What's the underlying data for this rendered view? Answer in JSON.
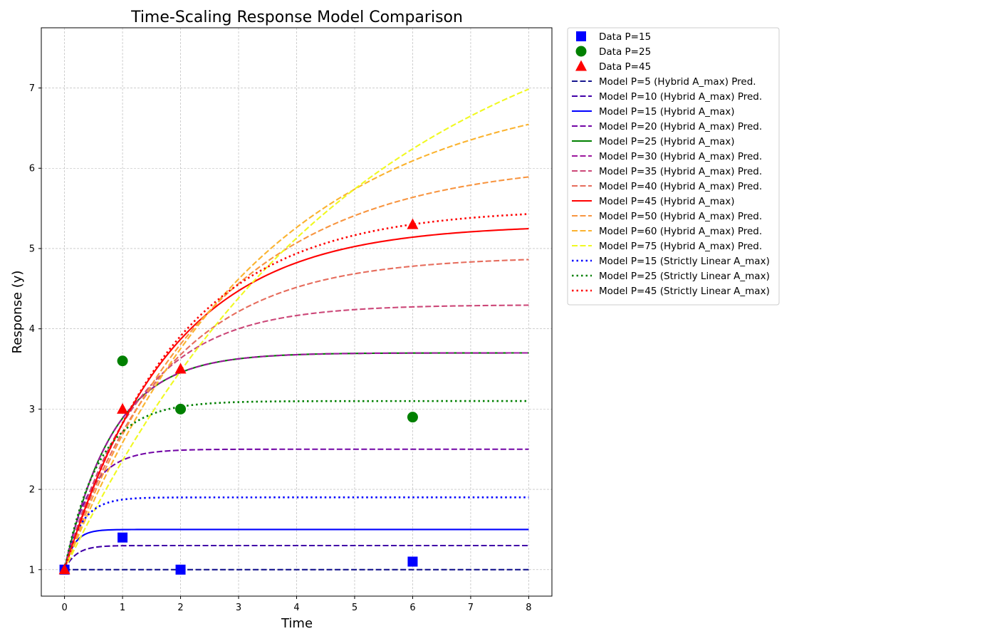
{
  "chart_data": {
    "type": "line",
    "title": "Time-Scaling Response Model Comparison",
    "xlabel": "Time",
    "ylabel": "Response (y)",
    "xlim": [
      -0.4,
      8.4
    ],
    "ylim": [
      0.67,
      7.75
    ],
    "xticks": [
      0,
      1,
      2,
      3,
      4,
      5,
      6,
      7,
      8
    ],
    "yticks": [
      1,
      2,
      3,
      4,
      5,
      6,
      7
    ],
    "grid": true,
    "legend_position": "outside-right-top",
    "scatter_series": [
      {
        "name": "Data P=15",
        "marker": "square",
        "color": "#0000ff",
        "points": [
          [
            0,
            1.0
          ],
          [
            1,
            1.4
          ],
          [
            2,
            1.0
          ],
          [
            6,
            1.1
          ]
        ]
      },
      {
        "name": "Data P=25",
        "marker": "circle",
        "color": "#008000",
        "points": [
          [
            1,
            3.6
          ],
          [
            2,
            3.0
          ],
          [
            6,
            2.9
          ]
        ]
      },
      {
        "name": "Data P=45",
        "marker": "triangle",
        "color": "#ff0000",
        "points": [
          [
            0,
            1.0
          ],
          [
            1,
            3.0
          ],
          [
            2,
            3.5
          ],
          [
            6,
            5.3
          ]
        ]
      }
    ],
    "line_series": [
      {
        "name": "Model P=5 (Hybrid A_max) Pred.",
        "style": "dashed",
        "color": "#17178f",
        "asymptote": 1.0,
        "rate": 3.0
      },
      {
        "name": "Model P=10 (Hybrid A_max) Pred.",
        "style": "dashed",
        "color": "#4100a8",
        "asymptote": 1.3,
        "rate": 5.0
      },
      {
        "name": "Model P=15 (Hybrid A_max)",
        "style": "solid",
        "color": "#0000ff",
        "asymptote": 1.5,
        "rate": 6.0
      },
      {
        "name": "Model P=20 (Hybrid A_max) Pred.",
        "style": "dashed",
        "color": "#7205a6",
        "asymptote": 2.5,
        "rate": 2.4
      },
      {
        "name": "Model P=25 (Hybrid A_max)",
        "style": "solid",
        "color": "#008000",
        "asymptote": 3.7,
        "rate": 1.2
      },
      {
        "name": "Model P=30 (Hybrid A_max) Pred.",
        "style": "dashed",
        "color": "#9c179e",
        "asymptote": 3.7,
        "rate": 1.2
      },
      {
        "name": "Model P=35 (Hybrid A_max) Pred.",
        "style": "dashed",
        "color": "#cc4778",
        "asymptote": 4.3,
        "rate": 0.8
      },
      {
        "name": "Model P=40 (Hybrid A_max) Pred.",
        "style": "dashed",
        "color": "#e66c5c",
        "asymptote": 4.9,
        "rate": 0.58
      },
      {
        "name": "Model P=45 (Hybrid A_max)",
        "style": "solid",
        "color": "#ff0000",
        "asymptote": 5.3,
        "rate": 0.55
      },
      {
        "name": "Model P=50 (Hybrid A_max) Pred.",
        "style": "dashed",
        "color": "#f89540",
        "asymptote": 6.1,
        "rate": 0.4
      },
      {
        "name": "Model P=60 (Hybrid A_max) Pred.",
        "style": "dashed",
        "color": "#fbb32f",
        "asymptote": 7.1,
        "rate": 0.3
      },
      {
        "name": "Model P=75 (Hybrid A_max) Pred.",
        "style": "dashed",
        "color": "#f0f921",
        "asymptote": 8.5,
        "rate": 0.2
      },
      {
        "name": "Model P=15 (Strictly Linear A_max)",
        "style": "dotted",
        "color": "#0000ff",
        "asymptote": 1.9,
        "rate": 3.5
      },
      {
        "name": "Model P=25 (Strictly Linear A_max)",
        "style": "dotted",
        "color": "#008000",
        "asymptote": 3.1,
        "rate": 1.7
      },
      {
        "name": "Model P=45 (Strictly Linear A_max)",
        "style": "dotted",
        "color": "#ff0000",
        "asymptote": 5.5,
        "rate": 0.52
      }
    ]
  }
}
